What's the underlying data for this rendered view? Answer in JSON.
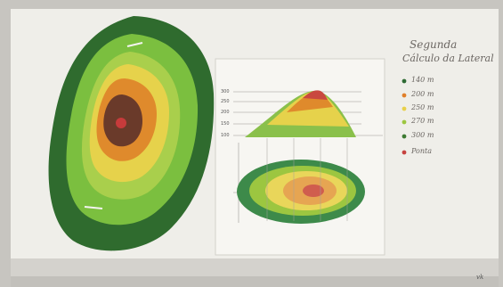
{
  "handwriting": {
    "title_line1": "Segunda",
    "title_line2": "Cálculo da Lateral",
    "legend": [
      {
        "label": "140 m",
        "color": "#2e6b34"
      },
      {
        "label": "200 m",
        "color": "#e07f2a"
      },
      {
        "label": "250 m",
        "color": "#e8d04a"
      },
      {
        "label": "270 m",
        "color": "#9cc640"
      },
      {
        "label": "300 m",
        "color": "#3d7a32"
      },
      {
        "label": "Ponta",
        "color": "#c6433f"
      }
    ],
    "axis_ticks": [
      "300",
      "250",
      "200",
      "150",
      "100"
    ],
    "corner_mark": "vk"
  },
  "colors": {
    "background": "#c9c7c2",
    "paper": "#eeede8",
    "felt_dark_green": "#2f6b2e",
    "felt_mid_green": "#7bbf3f",
    "felt_light_green": "#a9cf4c",
    "felt_yellow": "#e6d24b",
    "felt_orange": "#df8a2c",
    "felt_brown": "#6a3a2a",
    "felt_red": "#c63b3b"
  }
}
